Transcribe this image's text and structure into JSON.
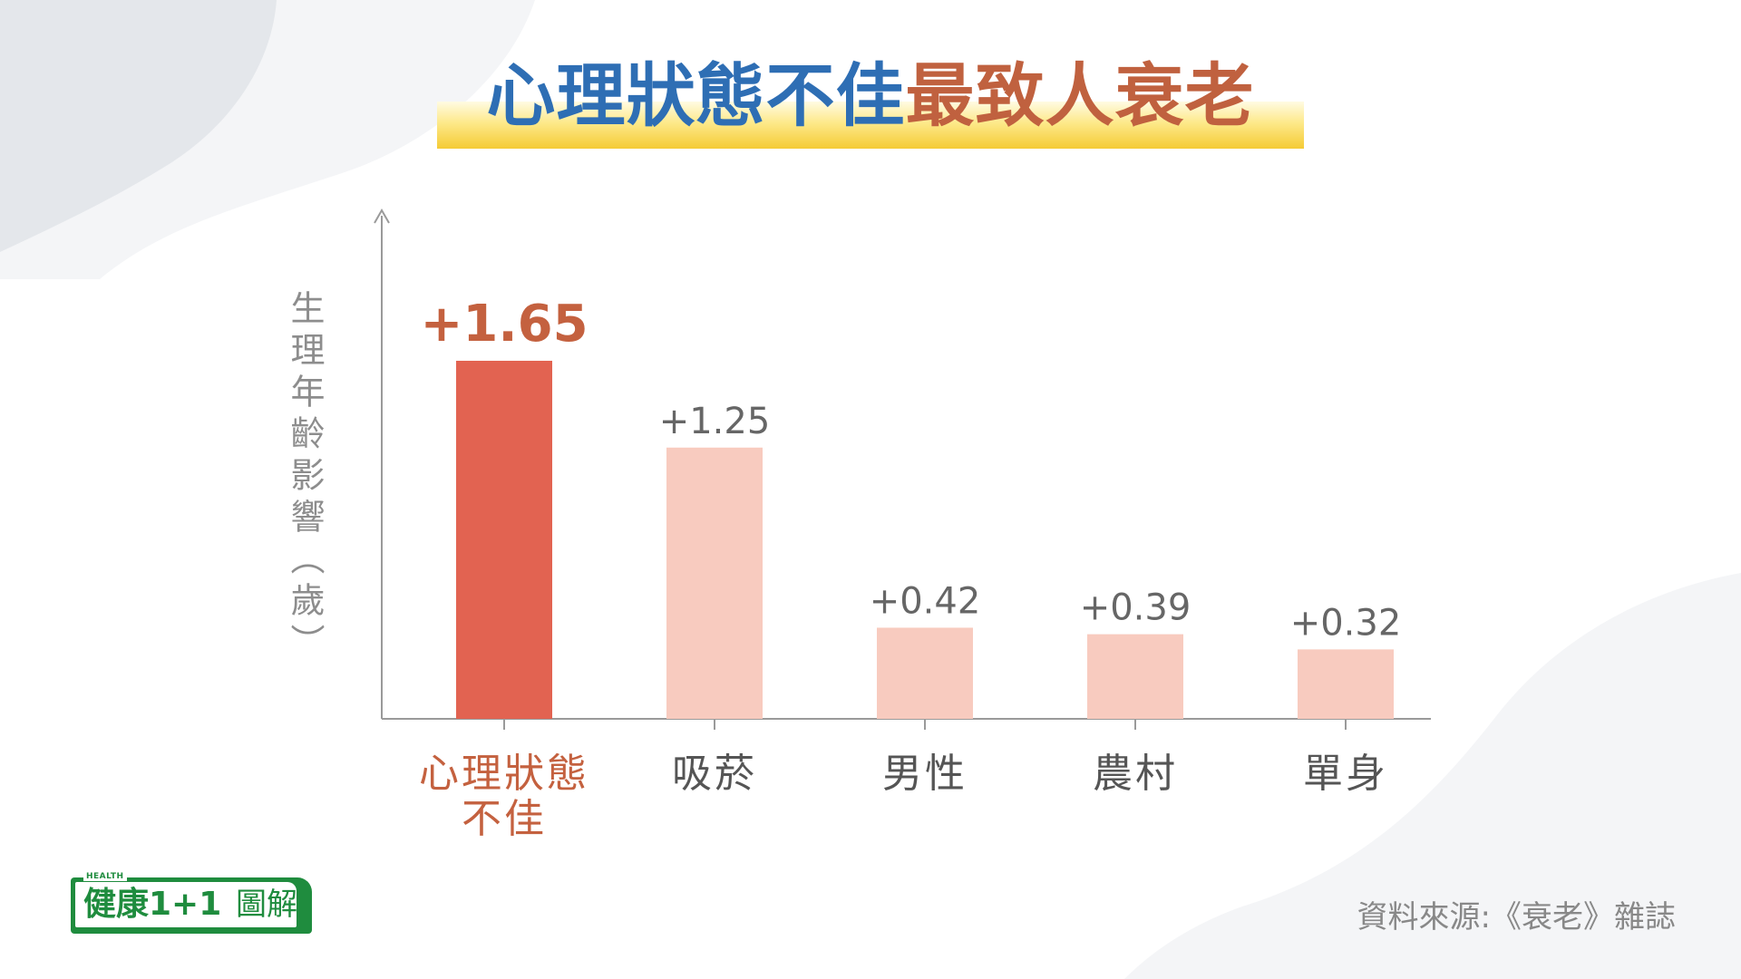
{
  "header": {
    "title_part1": "心理狀態不佳",
    "title_part2": "最致人衰老"
  },
  "colors": {
    "title_blue": "#2e6eb4",
    "title_orange": "#c0613f",
    "highlight_bar": "#e26351",
    "normal_bar": "#f8cbbf",
    "highlight_text": "#c4613f",
    "axis": "#9a9a9a",
    "logo_green": "#1f8c3e"
  },
  "chart_data": {
    "type": "bar",
    "title": "心理狀態不佳最致人衰老",
    "ylabel": "生理年齡影響（歲）",
    "xlabel": "",
    "ylim": [
      0,
      2.0
    ],
    "categories": [
      "心理狀態不佳",
      "吸菸",
      "男性",
      "農村",
      "單身"
    ],
    "values": [
      1.65,
      1.25,
      0.42,
      0.39,
      0.32
    ],
    "value_labels": [
      "+1.65",
      "+1.25",
      "+0.42",
      "+0.39",
      "+0.32"
    ],
    "highlight_index": 0,
    "grid": false,
    "legend": "none"
  },
  "footer": {
    "source": "資料來源:《衰老》雜誌"
  },
  "logo": {
    "health": "HEALTH",
    "brand": "健康1+1",
    "suffix": "圖解"
  }
}
